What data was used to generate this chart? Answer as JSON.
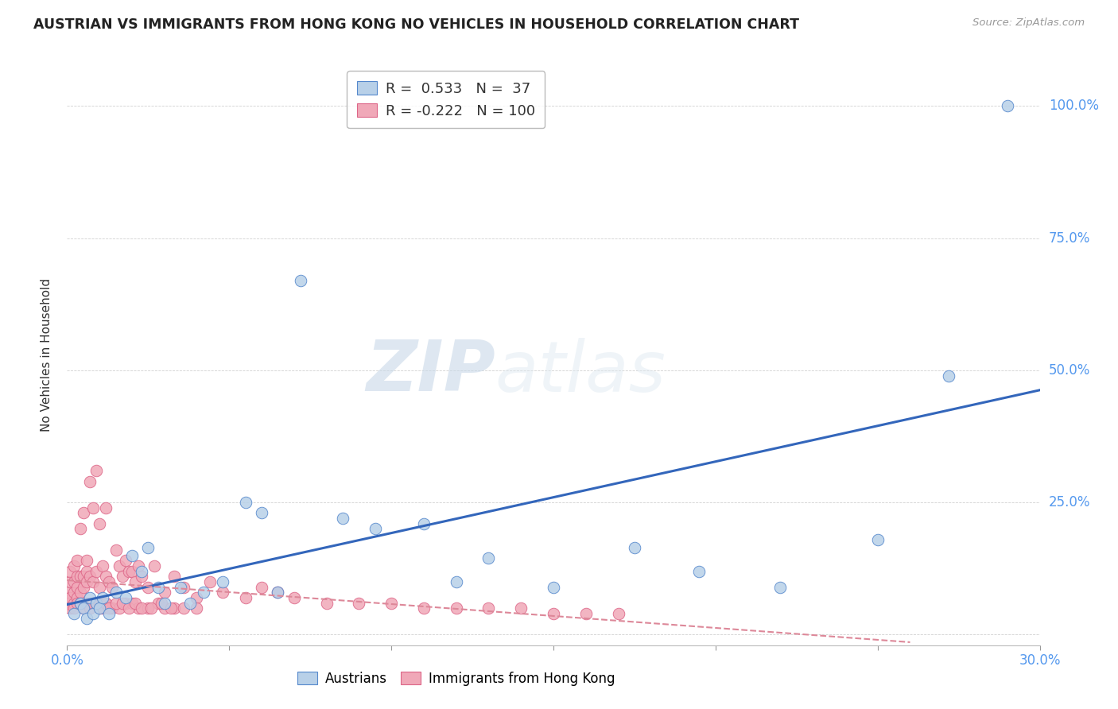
{
  "title": "AUSTRIAN VS IMMIGRANTS FROM HONG KONG NO VEHICLES IN HOUSEHOLD CORRELATION CHART",
  "source": "Source: ZipAtlas.com",
  "ylabel": "No Vehicles in Household",
  "xlim": [
    0.0,
    0.3
  ],
  "ylim": [
    -0.02,
    1.08
  ],
  "ytick_labels": [
    "",
    "25.0%",
    "50.0%",
    "75.0%",
    "100.0%"
  ],
  "ytick_vals": [
    0.0,
    0.25,
    0.5,
    0.75,
    1.0
  ],
  "xtick_labels": [
    "0.0%",
    "",
    "",
    "",
    "",
    "",
    "30.0%"
  ],
  "xtick_vals": [
    0.0,
    0.05,
    0.1,
    0.15,
    0.2,
    0.25,
    0.3
  ],
  "blue_R": 0.533,
  "blue_N": 37,
  "pink_R": -0.222,
  "pink_N": 100,
  "blue_color": "#b8d0e8",
  "pink_color": "#f0a8b8",
  "blue_edge_color": "#5588cc",
  "pink_edge_color": "#dd6688",
  "blue_line_color": "#3366bb",
  "pink_line_color": "#dd8899",
  "watermark_color": "#d8e4f0",
  "blue_scatter_x": [
    0.002,
    0.004,
    0.005,
    0.006,
    0.007,
    0.008,
    0.009,
    0.01,
    0.011,
    0.013,
    0.015,
    0.018,
    0.02,
    0.023,
    0.025,
    0.028,
    0.03,
    0.035,
    0.038,
    0.042,
    0.048,
    0.055,
    0.06,
    0.065,
    0.072,
    0.085,
    0.095,
    0.11,
    0.12,
    0.13,
    0.15,
    0.175,
    0.195,
    0.22,
    0.25,
    0.272,
    0.29
  ],
  "blue_scatter_y": [
    0.04,
    0.06,
    0.05,
    0.03,
    0.07,
    0.04,
    0.06,
    0.05,
    0.07,
    0.04,
    0.08,
    0.07,
    0.15,
    0.12,
    0.165,
    0.09,
    0.06,
    0.09,
    0.06,
    0.08,
    0.1,
    0.25,
    0.23,
    0.08,
    0.67,
    0.22,
    0.2,
    0.21,
    0.1,
    0.145,
    0.09,
    0.165,
    0.12,
    0.09,
    0.18,
    0.49,
    1.0
  ],
  "pink_scatter_x": [
    0.0,
    0.0,
    0.001,
    0.001,
    0.001,
    0.001,
    0.002,
    0.002,
    0.002,
    0.002,
    0.003,
    0.003,
    0.003,
    0.003,
    0.004,
    0.004,
    0.004,
    0.005,
    0.005,
    0.005,
    0.006,
    0.006,
    0.006,
    0.007,
    0.007,
    0.008,
    0.008,
    0.009,
    0.009,
    0.01,
    0.01,
    0.011,
    0.012,
    0.012,
    0.013,
    0.014,
    0.015,
    0.016,
    0.017,
    0.018,
    0.019,
    0.02,
    0.021,
    0.022,
    0.023,
    0.025,
    0.027,
    0.03,
    0.033,
    0.036,
    0.04,
    0.044,
    0.048,
    0.055,
    0.06,
    0.065,
    0.07,
    0.08,
    0.09,
    0.1,
    0.11,
    0.12,
    0.13,
    0.14,
    0.15,
    0.16,
    0.17,
    0.01,
    0.012,
    0.014,
    0.016,
    0.018,
    0.02,
    0.022,
    0.025,
    0.028,
    0.03,
    0.033,
    0.036,
    0.04,
    0.002,
    0.003,
    0.004,
    0.005,
    0.006,
    0.007,
    0.008,
    0.009,
    0.01,
    0.011,
    0.012,
    0.013,
    0.015,
    0.017,
    0.019,
    0.021,
    0.023,
    0.026,
    0.029,
    0.032
  ],
  "pink_scatter_y": [
    0.06,
    0.08,
    0.05,
    0.07,
    0.1,
    0.12,
    0.06,
    0.08,
    0.1,
    0.13,
    0.07,
    0.09,
    0.11,
    0.14,
    0.08,
    0.11,
    0.2,
    0.09,
    0.11,
    0.23,
    0.1,
    0.12,
    0.14,
    0.11,
    0.29,
    0.1,
    0.24,
    0.12,
    0.31,
    0.09,
    0.21,
    0.13,
    0.11,
    0.24,
    0.1,
    0.09,
    0.16,
    0.13,
    0.11,
    0.14,
    0.12,
    0.12,
    0.1,
    0.13,
    0.11,
    0.09,
    0.13,
    0.08,
    0.11,
    0.09,
    0.07,
    0.1,
    0.08,
    0.07,
    0.09,
    0.08,
    0.07,
    0.06,
    0.06,
    0.06,
    0.05,
    0.05,
    0.05,
    0.05,
    0.04,
    0.04,
    0.04,
    0.05,
    0.06,
    0.05,
    0.05,
    0.06,
    0.06,
    0.05,
    0.05,
    0.06,
    0.05,
    0.05,
    0.05,
    0.05,
    0.05,
    0.06,
    0.06,
    0.05,
    0.06,
    0.05,
    0.06,
    0.06,
    0.06,
    0.05,
    0.06,
    0.05,
    0.06,
    0.06,
    0.05,
    0.06,
    0.05,
    0.05,
    0.06,
    0.05
  ]
}
